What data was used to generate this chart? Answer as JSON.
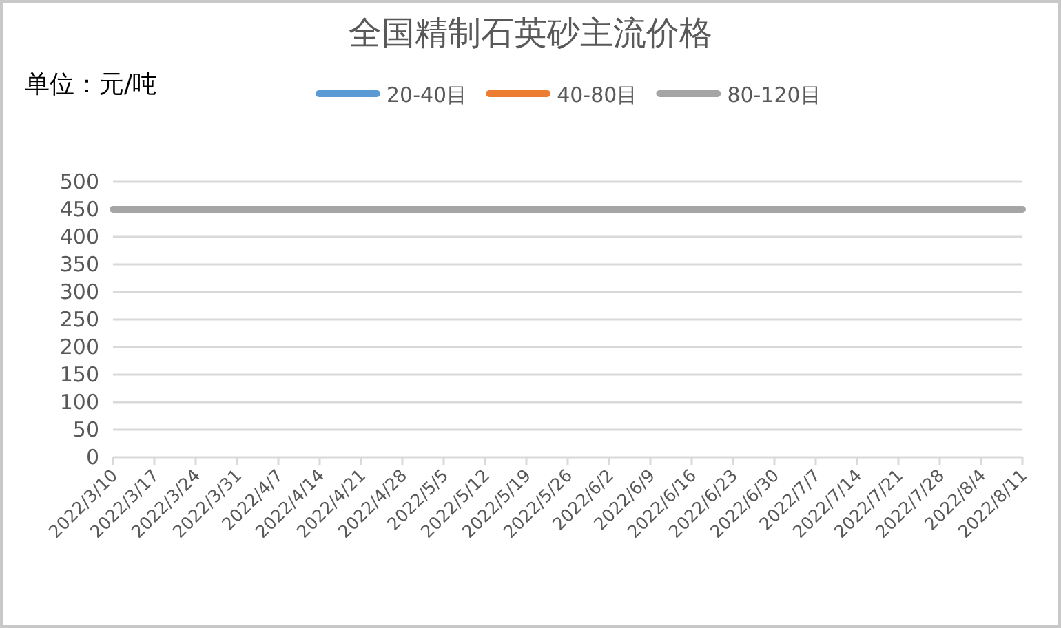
{
  "chart_data": {
    "type": "line",
    "title": "全国精制石英砂主流价格",
    "annotations": [
      "单位：元/吨"
    ],
    "categories": [
      "2022/3/10",
      "2022/3/17",
      "2022/3/24",
      "2022/3/31",
      "2022/4/7",
      "2022/4/14",
      "2022/4/21",
      "2022/4/28",
      "2022/5/5",
      "2022/5/12",
      "2022/5/19",
      "2022/5/26",
      "2022/6/2",
      "2022/6/9",
      "2022/6/16",
      "2022/6/23",
      "2022/6/30",
      "2022/7/7",
      "2022/7/14",
      "2022/7/21",
      "2022/7/28",
      "2022/8/4",
      "2022/8/11"
    ],
    "series": [
      {
        "name": "20-40目",
        "color": "#5b9bd5",
        "values": [
          null,
          null,
          null,
          null,
          null,
          null,
          null,
          null,
          null,
          null,
          null,
          null,
          null,
          null,
          null,
          null,
          null,
          null,
          null,
          null,
          null,
          null,
          null
        ]
      },
      {
        "name": "40-80目",
        "color": "#ed7d31",
        "values": [
          null,
          null,
          null,
          null,
          null,
          null,
          null,
          null,
          null,
          null,
          null,
          null,
          null,
          null,
          null,
          null,
          null,
          null,
          null,
          null,
          null,
          null,
          null
        ]
      },
      {
        "name": "80-120目",
        "color": "#a5a5a5",
        "values": [
          450,
          450,
          450,
          450,
          450,
          450,
          450,
          450,
          450,
          450,
          450,
          450,
          450,
          450,
          450,
          450,
          450,
          450,
          450,
          450,
          450,
          450,
          450
        ]
      }
    ],
    "ylim": [
      0,
      500
    ],
    "yticks": [
      0,
      50,
      100,
      150,
      200,
      250,
      300,
      350,
      400,
      450,
      500
    ],
    "grid": "y",
    "legend": "top"
  }
}
